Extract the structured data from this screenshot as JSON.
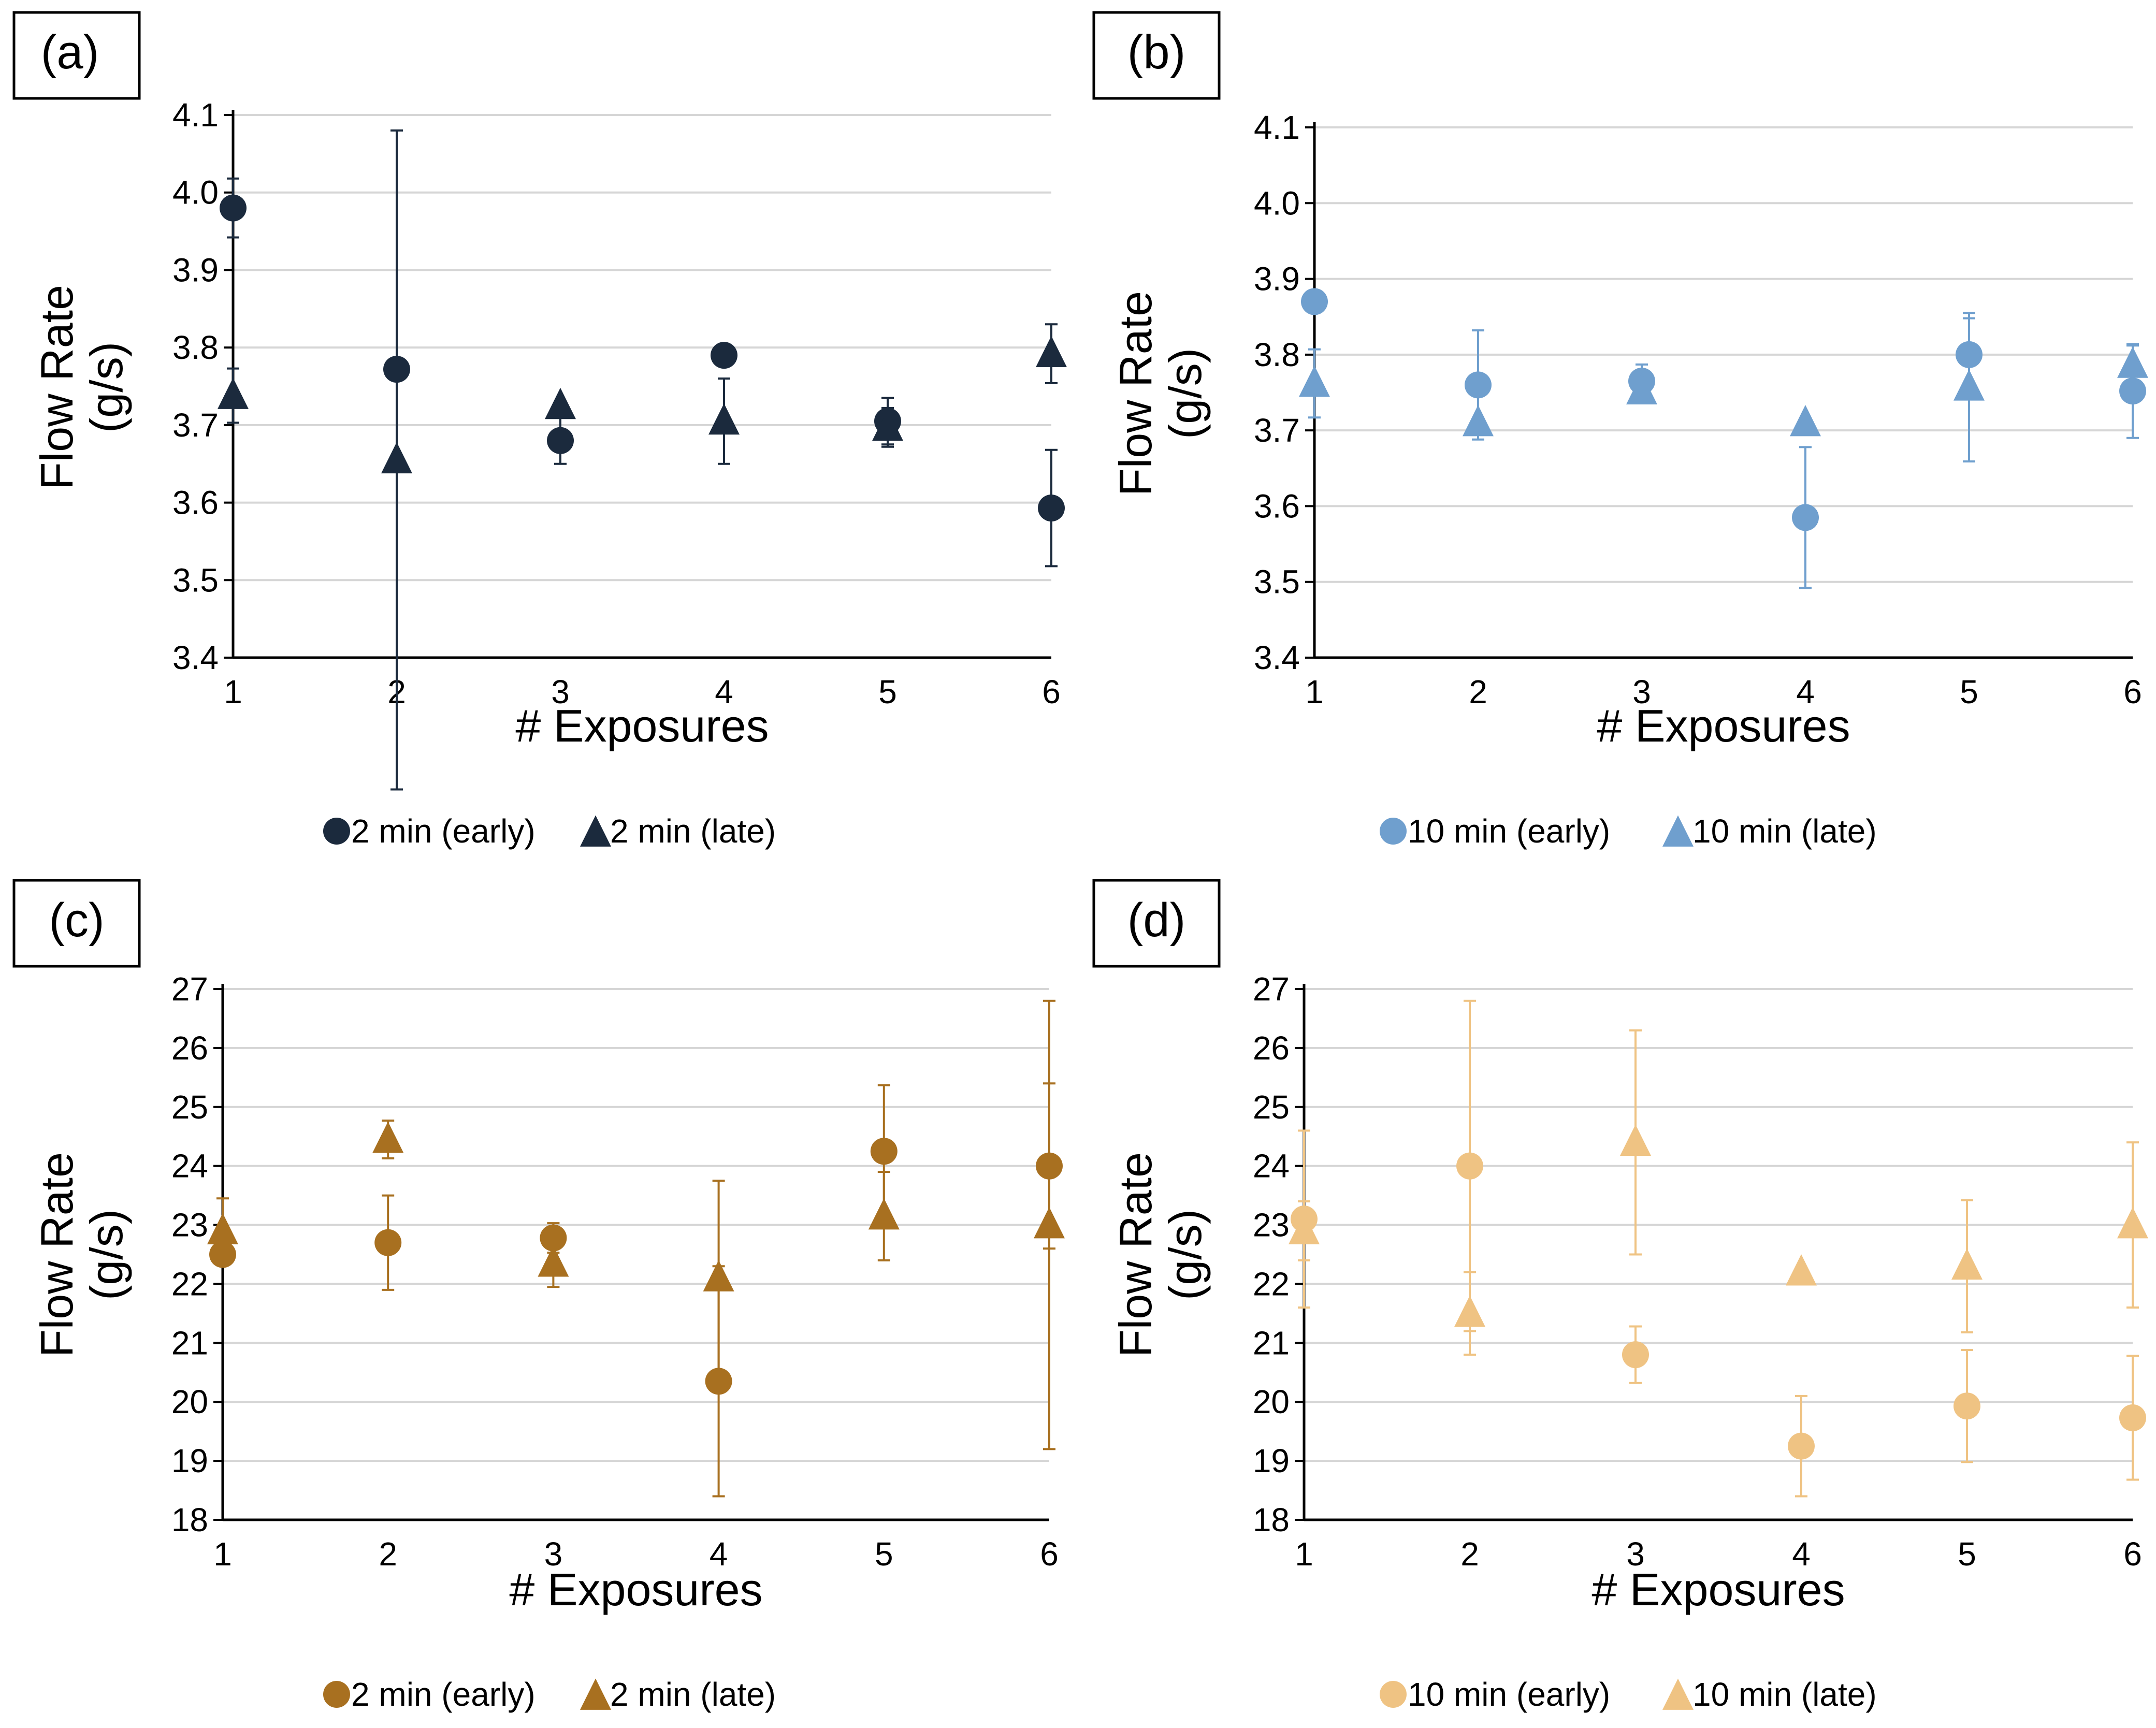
{
  "chart_data": [
    {
      "type": "scatter",
      "panel_label": "(a)",
      "xlabel": "# Exposures",
      "ylabel_line1": "Flow Rate",
      "ylabel_line2": "(g/s)",
      "ylim": [
        3.4,
        4.1
      ],
      "yticks": [
        3.4,
        3.5,
        3.6,
        3.7,
        3.8,
        3.9,
        4.0,
        4.1
      ],
      "ytick_labels": [
        "3.4",
        "3.5",
        "3.6",
        "3.7",
        "3.8",
        "3.9",
        "4.0",
        "4.1"
      ],
      "xticks": [
        1,
        2,
        3,
        4,
        5,
        6
      ],
      "xtick_labels": [
        "1",
        "2",
        "3",
        "4",
        "5",
        "6"
      ],
      "color": "#1b2a3d",
      "series": [
        {
          "name": "2 min (early)",
          "marker": "circle",
          "x": [
            1,
            2,
            3,
            4,
            5,
            6
          ],
          "y": [
            3.98,
            3.772,
            3.68,
            3.79,
            3.705,
            3.593
          ],
          "err": [
            0.038,
            0,
            0.03,
            0,
            0.03,
            0.075
          ]
        },
        {
          "name": "2 min (late)",
          "marker": "triangle",
          "x": [
            1,
            2,
            3,
            4,
            5,
            6
          ],
          "y": [
            3.738,
            3.655,
            3.725,
            3.705,
            3.697,
            3.792
          ],
          "err": [
            0.035,
            0.425,
            0,
            0.055,
            0.025,
            0.038
          ]
        }
      ]
    },
    {
      "type": "scatter",
      "panel_label": "(b)",
      "xlabel": "# Exposures",
      "ylabel_line1": "Flow Rate",
      "ylabel_line2": "(g/s)",
      "ylim": [
        3.4,
        4.1
      ],
      "yticks": [
        3.4,
        3.5,
        3.6,
        3.7,
        3.8,
        3.9,
        4.0,
        4.1
      ],
      "ytick_labels": [
        "3.4",
        "3.5",
        "3.6",
        "3.7",
        "3.8",
        "3.9",
        "4.0",
        "4.1"
      ],
      "xticks": [
        1,
        2,
        3,
        4,
        5,
        6
      ],
      "xtick_labels": [
        "1",
        "2",
        "3",
        "4",
        "5",
        "6"
      ],
      "color": "#6f9fce",
      "series": [
        {
          "name": "10 min (early)",
          "marker": "circle",
          "x": [
            1,
            2,
            3,
            4,
            5,
            6
          ],
          "y": [
            3.87,
            3.76,
            3.765,
            3.585,
            3.8,
            3.752
          ],
          "err": [
            0,
            0.072,
            0.022,
            0.093,
            0.048,
            0.062
          ]
        },
        {
          "name": "10 min (late)",
          "marker": "triangle",
          "x": [
            1,
            2,
            3,
            4,
            5,
            6
          ],
          "y": [
            3.762,
            3.71,
            3.752,
            3.71,
            3.757,
            3.787
          ],
          "err": [
            0.045,
            0,
            0,
            0,
            0.098,
            0.025
          ]
        }
      ]
    },
    {
      "type": "scatter",
      "panel_label": "(c)",
      "xlabel": "# Exposures",
      "ylabel_line1": "Flow Rate",
      "ylabel_line2": "(g/s)",
      "ylim": [
        18,
        27
      ],
      "yticks": [
        18,
        19,
        20,
        21,
        22,
        23,
        24,
        25,
        26,
        27
      ],
      "ytick_labels": [
        "18",
        "19",
        "20",
        "21",
        "22",
        "23",
        "24",
        "25",
        "26",
        "27"
      ],
      "xticks": [
        1,
        2,
        3,
        4,
        5,
        6
      ],
      "xtick_labels": [
        "1",
        "2",
        "3",
        "4",
        "5",
        "6"
      ],
      "color": "#a87020",
      "series": [
        {
          "name": "2 min (early)",
          "marker": "circle",
          "x": [
            1,
            2,
            3,
            4,
            5,
            6
          ],
          "y": [
            22.5,
            22.7,
            22.78,
            20.35,
            24.25,
            24.0
          ],
          "err": [
            0,
            0.8,
            0.25,
            1.95,
            1.12,
            1.4
          ]
        },
        {
          "name": "2 min (late)",
          "marker": "triangle",
          "x": [
            1,
            2,
            3,
            4,
            5,
            6
          ],
          "y": [
            22.9,
            24.45,
            22.35,
            22.1,
            23.15,
            23.0
          ],
          "err": [
            0.55,
            0.32,
            0.4,
            1.65,
            0.75,
            3.8
          ]
        }
      ]
    },
    {
      "type": "scatter",
      "panel_label": "(d)",
      "xlabel": "# Exposures",
      "ylabel_line1": "Flow Rate",
      "ylabel_line2": "(g/s)",
      "ylim": [
        18,
        27
      ],
      "yticks": [
        18,
        19,
        20,
        21,
        22,
        23,
        24,
        25,
        26,
        27
      ],
      "ytick_labels": [
        "18",
        "19",
        "20",
        "21",
        "22",
        "23",
        "24",
        "25",
        "26",
        "27"
      ],
      "xticks": [
        1,
        2,
        3,
        4,
        5,
        6
      ],
      "xtick_labels": [
        "1",
        "2",
        "3",
        "4",
        "5",
        "6"
      ],
      "color": "#efc383",
      "series": [
        {
          "name": "10 min (early)",
          "marker": "circle",
          "x": [
            1,
            2,
            3,
            4,
            5,
            6
          ],
          "y": [
            23.1,
            24.0,
            20.8,
            19.25,
            19.93,
            19.73
          ],
          "err": [
            1.5,
            2.8,
            0.48,
            0.85,
            0.95,
            1.05
          ]
        },
        {
          "name": "10 min (late)",
          "marker": "triangle",
          "x": [
            1,
            2,
            3,
            4,
            5,
            6
          ],
          "y": [
            22.9,
            21.5,
            24.4,
            22.2,
            22.3,
            23.0
          ],
          "err": [
            0.5,
            0.7,
            1.9,
            0,
            1.12,
            1.4
          ]
        }
      ]
    }
  ]
}
